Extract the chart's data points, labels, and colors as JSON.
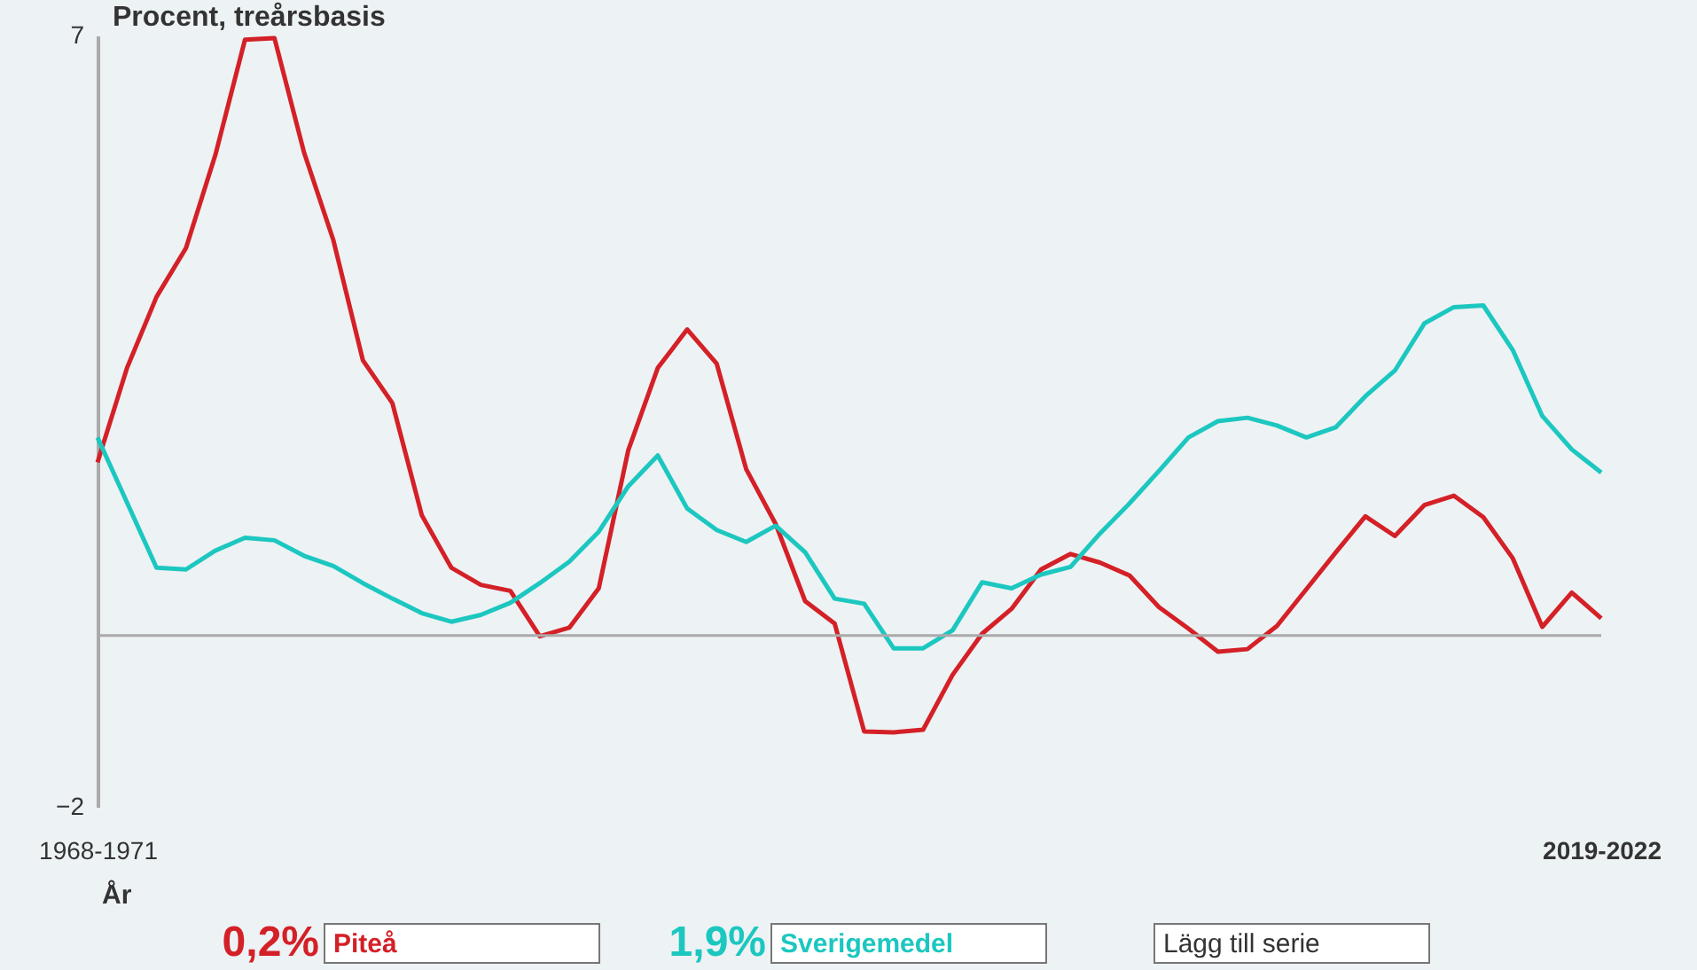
{
  "chart_data": {
    "type": "line",
    "ylabel": "Procent, treårsbasis",
    "xlabel": "År",
    "categories": [
      "1968-1971",
      null,
      null,
      null,
      null,
      null,
      null,
      null,
      null,
      null,
      null,
      null,
      null,
      null,
      null,
      null,
      null,
      null,
      null,
      null,
      null,
      null,
      null,
      null,
      null,
      null,
      null,
      null,
      null,
      null,
      null,
      null,
      null,
      null,
      null,
      null,
      null,
      null,
      null,
      null,
      null,
      null,
      null,
      null,
      null,
      null,
      null,
      null,
      null,
      null,
      null,
      "2019-2022"
    ],
    "ylim": [
      -2,
      7
    ],
    "yticks": [
      -2,
      7
    ],
    "grid": false,
    "legend": "bottom",
    "line_style": "solid",
    "ref_lines": [
      {
        "axis": "y",
        "value": 0,
        "color": "#aaaaaa"
      }
    ],
    "annotations": [
      "0,2%",
      "1,9%",
      "Lägg till serie"
    ],
    "series": [
      {
        "name": "Piteå",
        "color": "#d42027",
        "values": [
          2.02,
          3.12,
          3.95,
          4.52,
          5.61,
          6.95,
          6.97,
          5.64,
          4.61,
          3.21,
          2.71,
          1.4,
          0.79,
          0.59,
          0.52,
          -0.01,
          0.09,
          0.55,
          2.16,
          3.12,
          3.57,
          3.17,
          1.94,
          1.3,
          0.4,
          0.14,
          -1.12,
          -1.13,
          -1.1,
          -0.46,
          0.02,
          0.31,
          0.77,
          0.95,
          0.85,
          0.7,
          0.33,
          0.08,
          -0.19,
          -0.16,
          0.11,
          0.54,
          0.97,
          1.39,
          1.16,
          1.52,
          1.63,
          1.38,
          0.9,
          0.1,
          0.5,
          0.2
        ]
      },
      {
        "name": "Sverigemedel",
        "color": "#1cc7c0",
        "values": [
          2.31,
          1.55,
          0.79,
          0.77,
          0.99,
          1.14,
          1.11,
          0.93,
          0.81,
          0.61,
          0.43,
          0.26,
          0.16,
          0.24,
          0.38,
          0.61,
          0.86,
          1.21,
          1.74,
          2.1,
          1.48,
          1.23,
          1.09,
          1.28,
          0.97,
          0.43,
          0.37,
          -0.15,
          -0.15,
          0.06,
          0.62,
          0.55,
          0.71,
          0.8,
          1.19,
          1.54,
          1.92,
          2.31,
          2.5,
          2.54,
          2.45,
          2.31,
          2.43,
          2.79,
          3.09,
          3.64,
          3.83,
          3.85,
          3.33,
          2.56,
          2.17,
          1.9
        ]
      }
    ]
  }
}
